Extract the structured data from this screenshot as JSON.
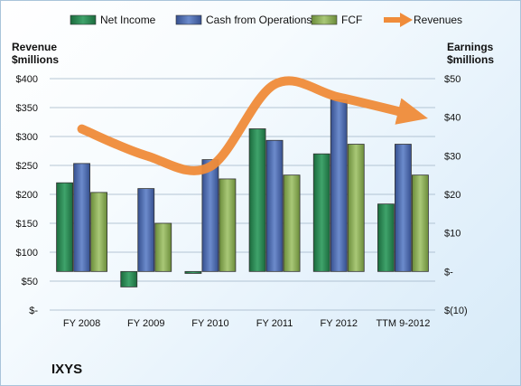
{
  "chart_data": {
    "type": "bar",
    "company": "IXYS",
    "categories": [
      "FY 2008",
      "FY 2009",
      "FY 2010",
      "FY 2011",
      "FY 2012",
      "TTM 9-2012"
    ],
    "left_axis": {
      "title_line1": "Revenue",
      "title_line2": "$millions",
      "range": [
        0,
        400
      ],
      "tick_labels": [
        "$-",
        "$50",
        "$100",
        "$150",
        "$200",
        "$250",
        "$300",
        "$350",
        "$400"
      ]
    },
    "right_axis": {
      "title_line1": "Earnings",
      "title_line2": "$millions",
      "range": [
        -10,
        50
      ],
      "tick_labels": [
        "$(10)",
        "$-",
        "$10",
        "$20",
        "$30",
        "$40",
        "$50"
      ]
    },
    "grid": true,
    "legend_position": "top",
    "series": [
      {
        "name": "Net Income",
        "axis": "right",
        "kind": "bar",
        "color": "#2e8b57",
        "values": [
          23,
          -4,
          -0.5,
          37,
          30.5,
          17.5
        ]
      },
      {
        "name": "Cash from Operations",
        "axis": "right",
        "kind": "bar",
        "color": "#4f6fb5",
        "values": [
          28,
          21.5,
          29,
          34,
          44.5,
          33
        ]
      },
      {
        "name": "FCF",
        "axis": "right",
        "kind": "bar",
        "color": "#8fb35a",
        "values": [
          20.5,
          12.5,
          24,
          25,
          33,
          25
        ]
      },
      {
        "name": "Revenues",
        "axis": "left",
        "kind": "line",
        "color": "#f08c3a",
        "values": [
          313,
          267,
          248,
          390,
          368,
          337
        ]
      }
    ]
  }
}
